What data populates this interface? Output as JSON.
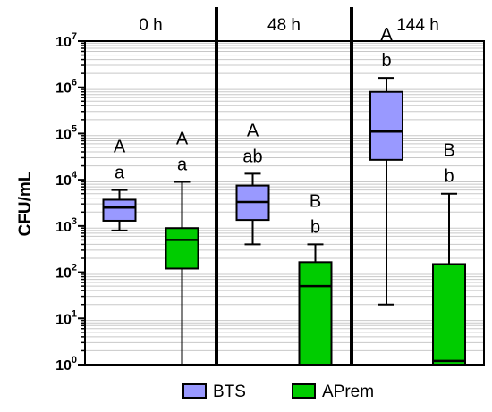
{
  "chart_data": {
    "type": "box",
    "ylabel": "CFU/mL",
    "yscale": "log",
    "ylim": [
      1,
      10000000
    ],
    "yticks": [
      {
        "value": 1,
        "base": "10",
        "exp": "0"
      },
      {
        "value": 10,
        "base": "10",
        "exp": "1"
      },
      {
        "value": 100,
        "base": "10",
        "exp": "2"
      },
      {
        "value": 1000,
        "base": "10",
        "exp": "3"
      },
      {
        "value": 10000,
        "base": "10",
        "exp": "4"
      },
      {
        "value": 100000,
        "base": "10",
        "exp": "5"
      },
      {
        "value": 1000000,
        "base": "10",
        "exp": "6"
      },
      {
        "value": 10000000,
        "base": "10",
        "exp": "7"
      }
    ],
    "grid": true,
    "legend_position": "bottom",
    "groups": [
      "0 h",
      "48 h",
      "144 h"
    ],
    "series": [
      {
        "name": "BTS",
        "color": "#9999ff",
        "boxes": [
          {
            "group": "0 h",
            "min": 800,
            "q1": 1300,
            "median": 2500,
            "q3": 3700,
            "max": 6000,
            "letters": [
              "A",
              "a"
            ]
          },
          {
            "group": "48 h",
            "min": 400,
            "q1": 1350,
            "median": 3300,
            "q3": 7500,
            "max": 13500,
            "letters": [
              "A",
              "ab"
            ]
          },
          {
            "group": "144 h",
            "min": 20,
            "q1": 27000,
            "median": 110000,
            "q3": 800000,
            "max": 1600000,
            "letters": [
              "A",
              "b"
            ]
          }
        ]
      },
      {
        "name": "APrem",
        "color": "#00cc00",
        "boxes": [
          {
            "group": "0 h",
            "min": 1,
            "q1": 120,
            "median": 500,
            "q3": 900,
            "max": 9000,
            "letters": [
              "A",
              "a"
            ]
          },
          {
            "group": "48 h",
            "min": 1,
            "q1": 1,
            "median": 50,
            "q3": 165,
            "max": 400,
            "letters": [
              "B",
              "b"
            ]
          },
          {
            "group": "144 h",
            "min": 1,
            "q1": 1,
            "median": 1.2,
            "q3": 150,
            "max": 5000,
            "letters": [
              "B",
              "b"
            ]
          }
        ]
      }
    ]
  }
}
